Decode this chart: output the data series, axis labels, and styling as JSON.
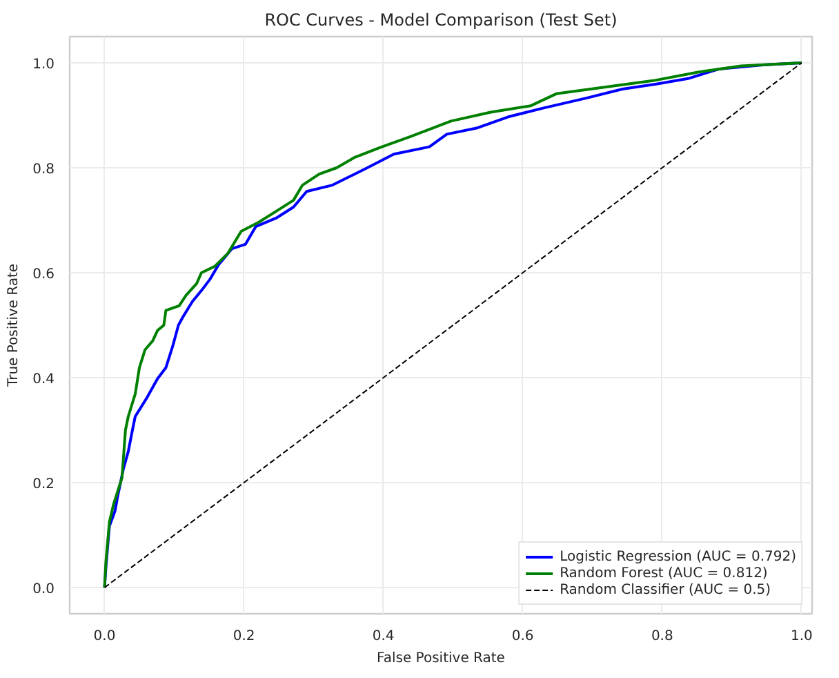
{
  "chart_data": {
    "type": "line",
    "title": "ROC Curves - Model Comparison (Test Set)",
    "xlabel": "False Positive Rate",
    "ylabel": "True Positive Rate",
    "xlim": [
      -0.05,
      1.015
    ],
    "ylim": [
      -0.05,
      1.05
    ],
    "xticks": [
      {
        "value": 0,
        "label": "0.0"
      },
      {
        "value": 0.2,
        "label": "0.2"
      },
      {
        "value": 0.4,
        "label": "0.4"
      },
      {
        "value": 0.6,
        "label": "0.6"
      },
      {
        "value": 0.8,
        "label": "0.8"
      },
      {
        "value": 1,
        "label": "1.0"
      }
    ],
    "yticks": [
      {
        "value": 0,
        "label": "0.0"
      },
      {
        "value": 0.2,
        "label": "0.2"
      },
      {
        "value": 0.4,
        "label": "0.4"
      },
      {
        "value": 0.6,
        "label": "0.6"
      },
      {
        "value": 0.8,
        "label": "0.8"
      },
      {
        "value": 1,
        "label": "1.0"
      }
    ],
    "grid": true,
    "legend": "bottom right",
    "series": [
      {
        "name": "Logistic Regression (AUC = 0.792)",
        "color": "#0000ff",
        "line_style": "solid",
        "x": [
          0,
          0.002,
          0.007,
          0.015,
          0.019,
          0.027,
          0.034,
          0.04,
          0.044,
          0.06,
          0.076,
          0.088,
          0.098,
          0.106,
          0.113,
          0.126,
          0.139,
          0.151,
          0.164,
          0.183,
          0.202,
          0.217,
          0.246,
          0.271,
          0.29,
          0.327,
          0.377,
          0.415,
          0.466,
          0.491,
          0.535,
          0.579,
          0.63,
          0.692,
          0.743,
          0.793,
          0.837,
          0.881,
          0.945,
          1
        ],
        "values": [
          0,
          0.04,
          0.117,
          0.146,
          0.175,
          0.226,
          0.259,
          0.3,
          0.326,
          0.36,
          0.398,
          0.419,
          0.461,
          0.5,
          0.517,
          0.545,
          0.566,
          0.587,
          0.616,
          0.646,
          0.654,
          0.688,
          0.704,
          0.725,
          0.755,
          0.767,
          0.8,
          0.826,
          0.84,
          0.864,
          0.876,
          0.897,
          0.914,
          0.933,
          0.95,
          0.96,
          0.97,
          0.988,
          0.996,
          1
        ]
      },
      {
        "name": "Random Forest (AUC = 0.812)",
        "color": "#008000",
        "line_style": "solid",
        "x": [
          0,
          0.002,
          0.007,
          0.013,
          0.025,
          0.03,
          0.034,
          0.044,
          0.05,
          0.058,
          0.069,
          0.076,
          0.085,
          0.088,
          0.107,
          0.117,
          0.132,
          0.139,
          0.158,
          0.177,
          0.196,
          0.221,
          0.246,
          0.271,
          0.284,
          0.308,
          0.333,
          0.359,
          0.396,
          0.44,
          0.497,
          0.554,
          0.611,
          0.648,
          0.73,
          0.787,
          0.85,
          0.913,
          1
        ],
        "values": [
          0,
          0.05,
          0.125,
          0.159,
          0.209,
          0.3,
          0.326,
          0.369,
          0.419,
          0.453,
          0.47,
          0.49,
          0.5,
          0.528,
          0.537,
          0.557,
          0.579,
          0.6,
          0.612,
          0.637,
          0.679,
          0.696,
          0.717,
          0.738,
          0.767,
          0.788,
          0.8,
          0.82,
          0.839,
          0.86,
          0.889,
          0.906,
          0.918,
          0.941,
          0.956,
          0.966,
          0.982,
          0.994,
          1
        ]
      },
      {
        "name": "Random Classifier (AUC = 0.5)",
        "color": "#000000",
        "line_style": "dashed",
        "x": [
          0,
          1
        ],
        "values": [
          0,
          1
        ]
      }
    ]
  }
}
